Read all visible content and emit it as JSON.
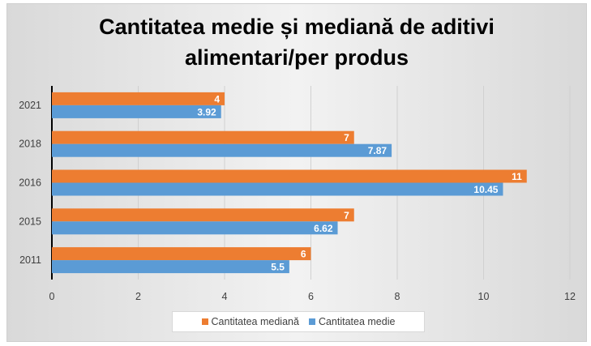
{
  "colors": {
    "median": "#ED7D31",
    "mean": "#5B9BD5",
    "grid": "#d0d0d0",
    "axis": "#000000",
    "tick_text": "#404040",
    "bar_label": "#ffffff"
  },
  "chart_data": {
    "type": "bar",
    "orientation": "horizontal",
    "title": "Cantitatea medie și mediană de aditivi\nalimentari/per produs",
    "categories": [
      "2011",
      "2015",
      "2016",
      "2018",
      "2021"
    ],
    "series": [
      {
        "name": "Cantitatea mediană",
        "values": [
          6,
          7,
          11,
          7,
          4
        ],
        "labels": [
          "6",
          "7",
          "11",
          "7",
          "4"
        ]
      },
      {
        "name": "Cantitatea medie",
        "values": [
          5.5,
          6.62,
          10.45,
          7.87,
          3.92
        ],
        "labels": [
          "5.5",
          "6.62",
          "10.45",
          "7.87",
          "3.92"
        ]
      }
    ],
    "xlim": [
      0,
      12
    ],
    "xticks": [
      "0",
      "2",
      "4",
      "6",
      "8",
      "10",
      "12"
    ],
    "grid": true,
    "data_labels": true,
    "legend_position": "bottom",
    "legend": [
      "Cantitatea mediană",
      "Cantitatea medie"
    ]
  }
}
